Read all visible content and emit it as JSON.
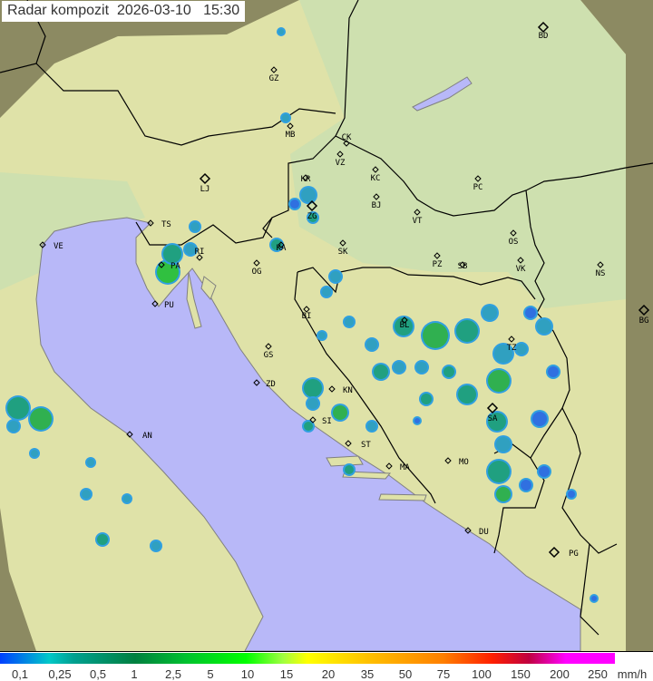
{
  "header": {
    "title": "Radar kompozit",
    "date": "2026-03-10",
    "time": "15:30"
  },
  "colors": {
    "land": "#dfe2a8",
    "sea": "#b8b8f8",
    "outside": "#8c8a62",
    "border": "#000000",
    "coast": "#808080"
  },
  "cities": [
    "BD",
    "GZ",
    "MB",
    "CK",
    "VZ",
    "KC",
    "PC",
    "LJ",
    "KR",
    "ZG",
    "BJ",
    "VT",
    "TS",
    "VE",
    "RI",
    "KA",
    "SK",
    "OS",
    "PA",
    "OG",
    "PZ",
    "SB",
    "VK",
    "NS",
    "PU",
    "BI",
    "BG",
    "BL",
    "TZ",
    "GS",
    "ZD",
    "KN",
    "SI",
    "SA",
    "ST",
    "AN",
    "MA",
    "MO",
    "DU",
    "PG"
  ],
  "legend": {
    "unit": "mm/h",
    "labels": [
      "0,1",
      "0,25",
      "0,5",
      "1",
      "2,5",
      "5",
      "10",
      "15",
      "20",
      "35",
      "50",
      "75",
      "100",
      "150",
      "200",
      "250"
    ]
  }
}
